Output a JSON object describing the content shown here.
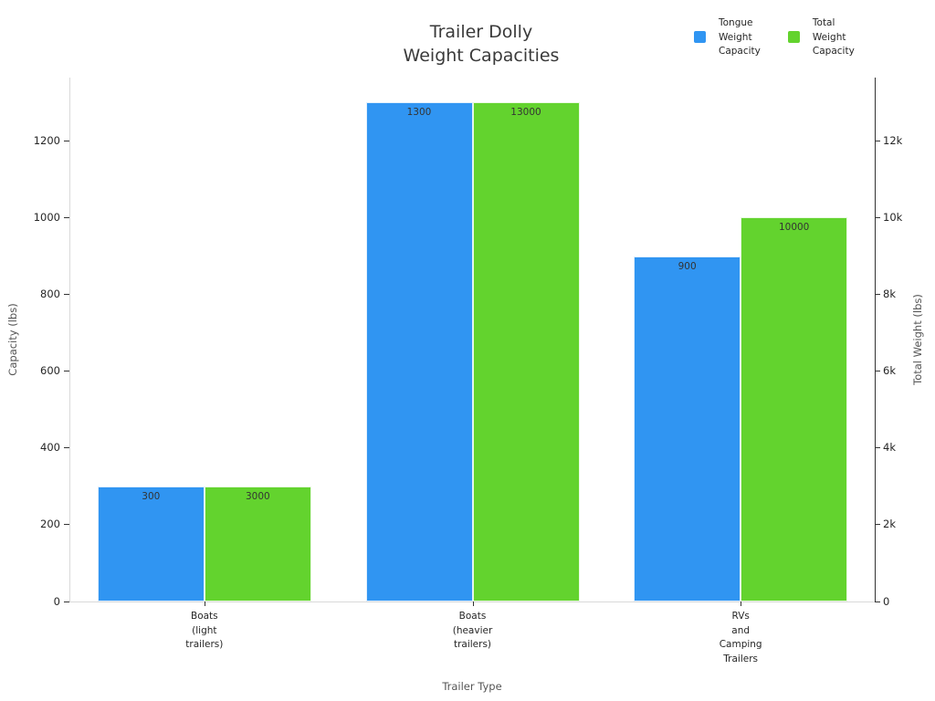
{
  "chart_data": {
    "type": "bar",
    "title": "Trailer Dolly Weight Capacities",
    "title_lines": [
      "Trailer Dolly",
      "Weight Capacities"
    ],
    "xlabel": "Trailer Type",
    "ylabel_left": "Capacity (lbs)",
    "ylabel_right": "Total Weight (lbs)",
    "categories": [
      [
        "Boats",
        "(light",
        "trailers)"
      ],
      [
        "Boats",
        "(heavier",
        "trailers)"
      ],
      [
        "RVs",
        "and",
        "Camping",
        "Trailers"
      ]
    ],
    "series": [
      {
        "name": "Tongue Weight Capacity",
        "name_lines": [
          "Tongue",
          "Weight",
          "Capacity"
        ],
        "axis": "left",
        "color": "#3095F2",
        "values": [
          300,
          1300,
          900
        ],
        "labels": [
          "300",
          "1300",
          "900"
        ]
      },
      {
        "name": "Total Weight Capacity",
        "name_lines": [
          "Total",
          "Weight",
          "Capacity"
        ],
        "axis": "right",
        "color": "#63D32E",
        "values": [
          3000,
          13000,
          10000
        ],
        "labels": [
          "3000",
          "13000",
          "10000"
        ]
      }
    ],
    "left_axis": {
      "range": [
        0,
        1365
      ],
      "ticks": [
        0,
        200,
        400,
        600,
        800,
        1000,
        1200
      ],
      "tick_labels": [
        "0",
        "200",
        "400",
        "600",
        "800",
        "1000",
        "1200"
      ]
    },
    "right_axis": {
      "range": [
        0,
        13650
      ],
      "ticks": [
        0,
        2000,
        4000,
        6000,
        8000,
        10000,
        12000
      ],
      "tick_labels": [
        "0",
        "2k",
        "4k",
        "6k",
        "8k",
        "10k",
        "12k"
      ]
    },
    "grid": false,
    "legend_position": "top-right",
    "show_value_labels": true
  }
}
